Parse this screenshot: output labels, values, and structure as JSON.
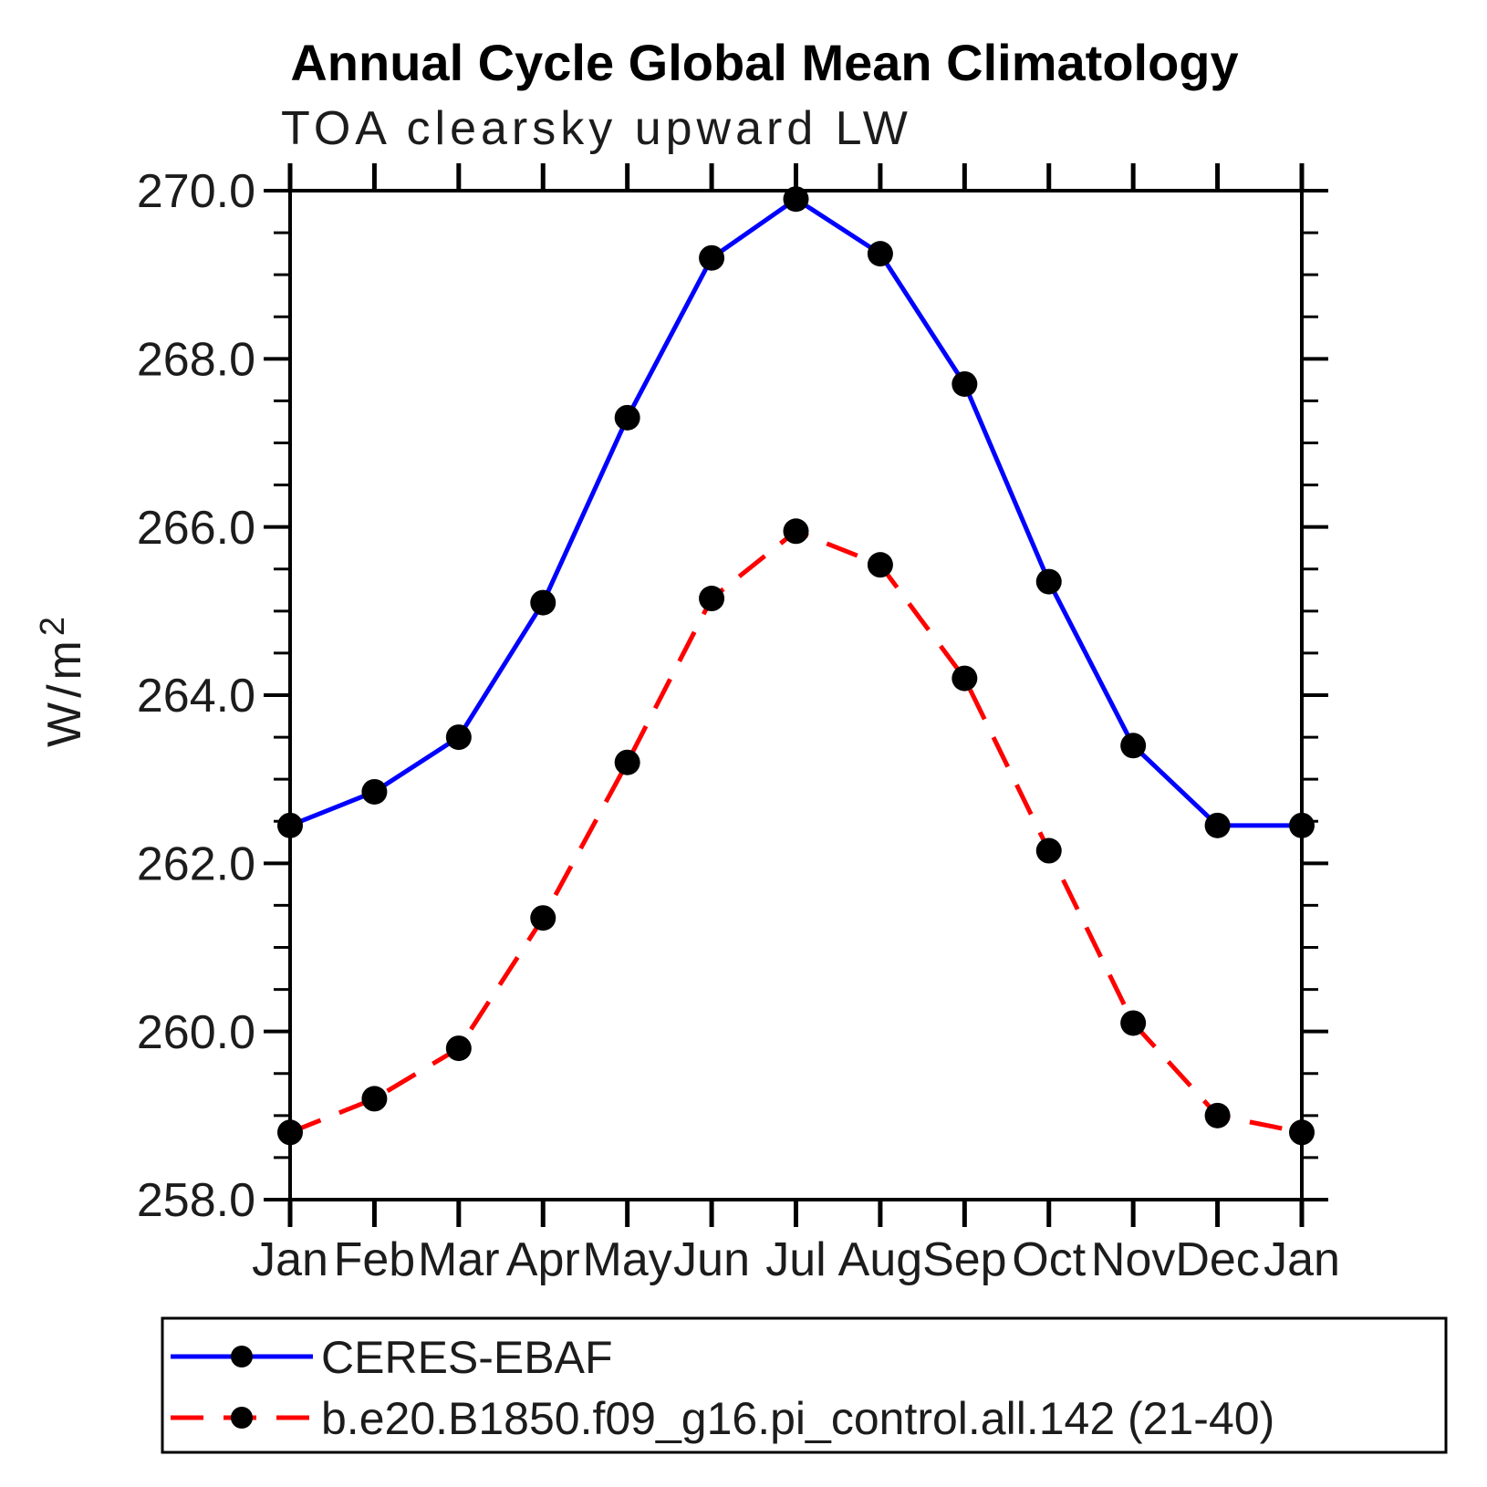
{
  "title": "Annual Cycle Global Mean Climatology",
  "subtitle": "TOA clearsky upward LW",
  "ylabel_base": "W/m",
  "ylabel_sup": "2",
  "colors": {
    "frame": "#000000",
    "text": "#1c1c1c",
    "title_text": "#000000",
    "obs_line": "#0000ff",
    "model_line": "#ff0000",
    "marker": "#000000",
    "background": "#ffffff"
  },
  "chart_data": {
    "type": "line",
    "title": "Annual Cycle Global Mean Climatology",
    "subtitle": "TOA clearsky upward LW",
    "ylabel": "W/m^2",
    "categories": [
      "Jan",
      "Feb",
      "Mar",
      "Apr",
      "May",
      "Jun",
      "Jul",
      "Aug",
      "Sep",
      "Oct",
      "Nov",
      "Dec",
      "Jan"
    ],
    "ylim": [
      258.0,
      270.0
    ],
    "ytick_interval": 2.0,
    "yminor_interval": 0.5,
    "ytick_decimals": 1,
    "grid": false,
    "legend_position": "bottom",
    "series": [
      {
        "name": "CERES-EBAF",
        "color": "#0000ff",
        "style": "solid",
        "marker": "circle",
        "marker_color": "#000000",
        "values": [
          262.45,
          262.85,
          263.5,
          265.1,
          267.3,
          269.2,
          269.9,
          269.25,
          267.7,
          265.35,
          263.4,
          262.45,
          262.45
        ]
      },
      {
        "name": "b.e20.B1850.f09_g16.pi_control.all.142 (21-40)",
        "color": "#ff0000",
        "style": "dashed",
        "marker": "circle",
        "marker_color": "#000000",
        "values": [
          258.8,
          259.2,
          259.8,
          261.35,
          263.2,
          265.15,
          265.95,
          265.55,
          264.2,
          262.15,
          260.1,
          259.0,
          258.8
        ]
      }
    ]
  }
}
